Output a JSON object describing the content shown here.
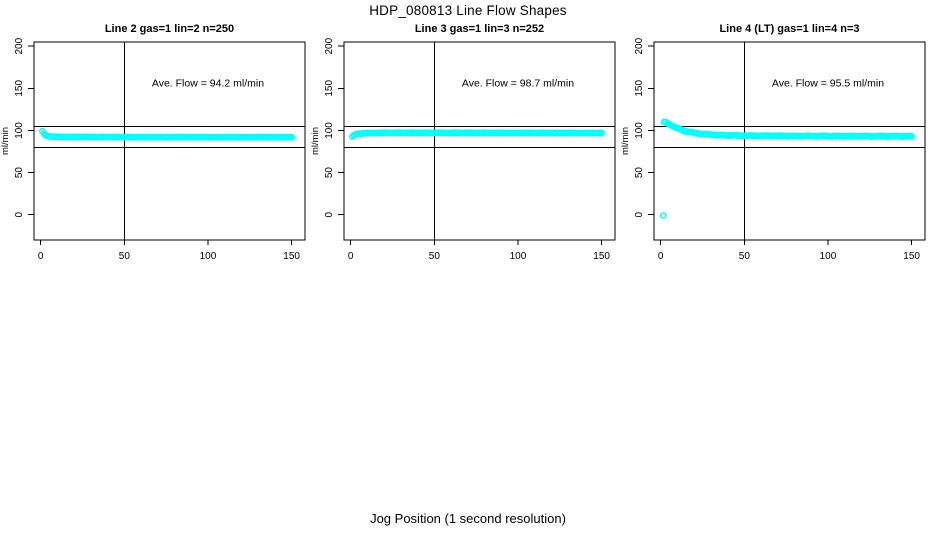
{
  "figure": {
    "title": "HDP_080813  Line Flow Shapes",
    "xlabel": "Jog Position (1 second resolution)",
    "ylabel": "ml/min",
    "point_color": "#00ffff",
    "line_color": "#000000",
    "background": "#ffffff"
  },
  "chart_data": [
    {
      "type": "scatter",
      "title": "Line 2 gas=1 lin=2 n=250",
      "n": 250,
      "ave_flow": 94.2,
      "annotation": "Ave. Flow =  94.2  ml/min",
      "ylabel": "ml/min",
      "xlim": [
        -4,
        158
      ],
      "ylim": [
        -30,
        205
      ],
      "xticks": [
        0,
        50,
        100,
        150
      ],
      "yticks": [
        0,
        50,
        100,
        150,
        200
      ],
      "vline_x": 50,
      "hlines": [
        105,
        80
      ],
      "x_start": 1,
      "x_end": 150,
      "keypoints": [
        [
          1,
          99
        ],
        [
          2,
          96
        ],
        [
          3,
          94
        ],
        [
          5,
          93
        ],
        [
          10,
          92.4
        ],
        [
          60,
          92.1
        ],
        [
          150,
          92
        ]
      ],
      "noise": 0.35,
      "outliers": []
    },
    {
      "type": "scatter",
      "title": "Line 3 gas=1 lin=3 n=252",
      "n": 252,
      "ave_flow": 98.7,
      "annotation": "Ave. Flow =  98.7  ml/min",
      "ylabel": "ml/min",
      "xlim": [
        -4,
        158
      ],
      "ylim": [
        -30,
        205
      ],
      "xticks": [
        0,
        50,
        100,
        150
      ],
      "yticks": [
        0,
        50,
        100,
        150,
        200
      ],
      "vline_x": 50,
      "hlines": [
        105,
        80
      ],
      "x_start": 1,
      "x_end": 150,
      "keypoints": [
        [
          1,
          92.5
        ],
        [
          2,
          94.5
        ],
        [
          4,
          96
        ],
        [
          8,
          96.8
        ],
        [
          20,
          97.3
        ],
        [
          150,
          97
        ]
      ],
      "noise": 0.35,
      "outliers": []
    },
    {
      "type": "scatter",
      "title": "Line 4 (LT) gas=1 lin=4 n=3",
      "n": 3,
      "ave_flow": 95.5,
      "annotation": "Ave. Flow =  95.5  ml/min",
      "ylabel": "ml/min",
      "xlim": [
        -4,
        158
      ],
      "ylim": [
        -30,
        205
      ],
      "xticks": [
        0,
        50,
        100,
        150
      ],
      "yticks": [
        0,
        50,
        100,
        150,
        200
      ],
      "vline_x": 50,
      "hlines": [
        105,
        80
      ],
      "x_start": 2,
      "x_end": 150,
      "keypoints": [
        [
          2,
          110
        ],
        [
          4,
          108.5
        ],
        [
          6,
          106.5
        ],
        [
          9,
          103.5
        ],
        [
          12,
          101
        ],
        [
          16,
          98.5
        ],
        [
          20,
          97
        ],
        [
          26,
          95.5
        ],
        [
          35,
          94.5
        ],
        [
          50,
          93.8
        ],
        [
          80,
          93.3
        ],
        [
          150,
          93
        ]
      ],
      "noise": 0.8,
      "outliers": [
        [
          1.5,
          -1
        ]
      ]
    }
  ]
}
